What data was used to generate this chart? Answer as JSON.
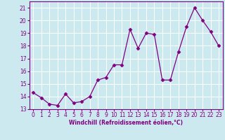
{
  "x": [
    0,
    1,
    2,
    3,
    4,
    5,
    6,
    7,
    8,
    9,
    10,
    11,
    12,
    13,
    14,
    15,
    16,
    17,
    18,
    19,
    20,
    21,
    22,
    23
  ],
  "y": [
    14.3,
    13.9,
    13.4,
    13.3,
    14.2,
    13.5,
    13.6,
    14.0,
    15.3,
    15.5,
    16.5,
    16.5,
    19.3,
    17.8,
    19.0,
    18.9,
    15.3,
    15.3,
    17.5,
    19.5,
    21.0,
    20.0,
    19.1,
    18.0
  ],
  "line_color": "#800080",
  "marker": "D",
  "marker_size": 2.5,
  "bg_color": "#cce9f0",
  "grid_color": "#ffffff",
  "xlabel": "Windchill (Refroidissement éolien,°C)",
  "ylim": [
    13,
    21.5
  ],
  "xlim": [
    -0.5,
    23.5
  ],
  "yticks": [
    13,
    14,
    15,
    16,
    17,
    18,
    19,
    20,
    21
  ],
  "xticks": [
    0,
    1,
    2,
    3,
    4,
    5,
    6,
    7,
    8,
    9,
    10,
    11,
    12,
    13,
    14,
    15,
    16,
    17,
    18,
    19,
    20,
    21,
    22,
    23
  ],
  "axis_fontsize": 5.5,
  "tick_fontsize": 5.5,
  "linewidth": 0.9
}
